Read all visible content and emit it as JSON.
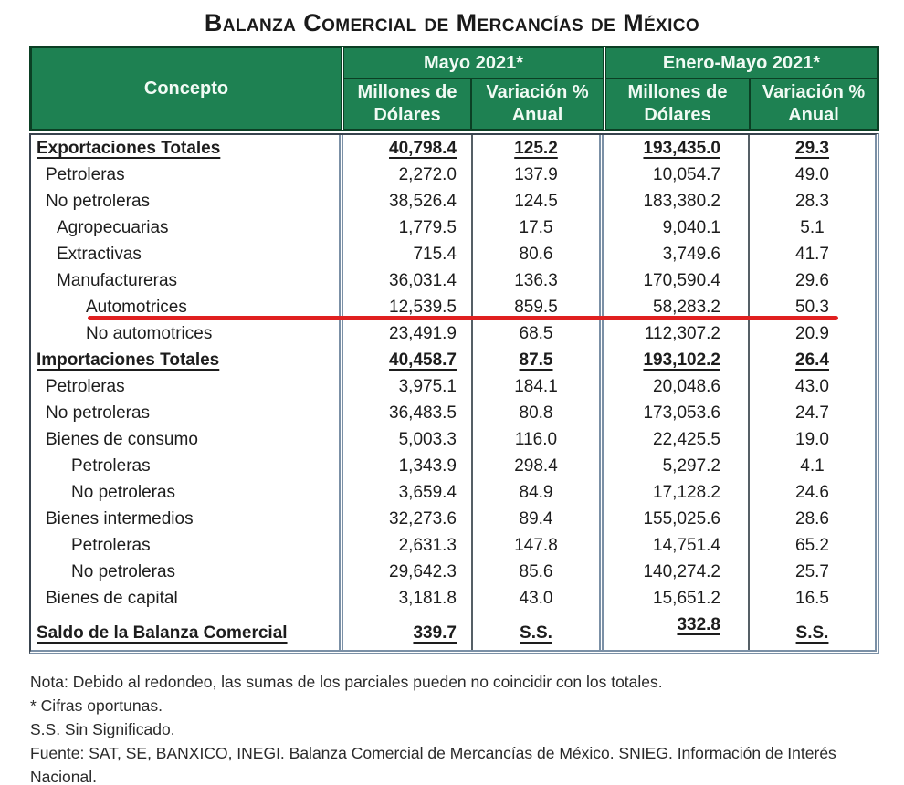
{
  "title": "Balanza Comercial de Mercancías de México",
  "table": {
    "concepto_header": "Concepto",
    "groups": [
      {
        "label": "Mayo 2021*",
        "col1": "Millones de\nDólares",
        "col2": "Variación %\nAnual"
      },
      {
        "label": "Enero-Mayo 2021*",
        "col1": "Millones de\nDólares",
        "col2": "Variación %\nAnual"
      }
    ],
    "rows": [
      {
        "concepto": "Exportaciones Totales",
        "indent": 0,
        "bold": true,
        "underline": true,
        "values": [
          "40,798.4",
          "125.2",
          "193,435.0",
          "29.3"
        ]
      },
      {
        "concepto": "Petroleras",
        "indent": 1,
        "values": [
          "2,272.0",
          "137.9",
          "10,054.7",
          "49.0"
        ]
      },
      {
        "concepto": "No petroleras",
        "indent": 1,
        "values": [
          "38,526.4",
          "124.5",
          "183,380.2",
          "28.3"
        ]
      },
      {
        "concepto": "Agropecuarias",
        "indent": 2,
        "values": [
          "1,779.5",
          "17.5",
          "9,040.1",
          "5.1"
        ]
      },
      {
        "concepto": "Extractivas",
        "indent": 2,
        "values": [
          "715.4",
          "80.6",
          "3,749.6",
          "41.7"
        ]
      },
      {
        "concepto": "Manufactureras",
        "indent": 2,
        "values": [
          "36,031.4",
          "136.3",
          "170,590.4",
          "29.6"
        ]
      },
      {
        "concepto": "Automotrices",
        "indent": 4,
        "values": [
          "12,539.5",
          "859.5",
          "58,283.2",
          "50.3"
        ]
      },
      {
        "concepto": "No automotrices",
        "indent": 4,
        "values": [
          "23,491.9",
          "68.5",
          "112,307.2",
          "20.9"
        ]
      },
      {
        "concepto": "Importaciones Totales",
        "indent": 0,
        "bold": true,
        "underline": true,
        "values": [
          "40,458.7",
          "87.5",
          "193,102.2",
          "26.4"
        ]
      },
      {
        "concepto": "Petroleras",
        "indent": 1,
        "values": [
          "3,975.1",
          "184.1",
          "20,048.6",
          "43.0"
        ]
      },
      {
        "concepto": "No petroleras",
        "indent": 1,
        "values": [
          "36,483.5",
          "80.8",
          "173,053.6",
          "24.7"
        ]
      },
      {
        "concepto": "Bienes de consumo",
        "indent": 1,
        "values": [
          "5,003.3",
          "116.0",
          "22,425.5",
          "19.0"
        ]
      },
      {
        "concepto": "Petroleras",
        "indent": 3,
        "values": [
          "1,343.9",
          "298.4",
          "5,297.2",
          "4.1"
        ]
      },
      {
        "concepto": "No petroleras",
        "indent": 3,
        "values": [
          "3,659.4",
          "84.9",
          "17,128.2",
          "24.6"
        ]
      },
      {
        "concepto": "Bienes intermedios",
        "indent": 1,
        "values": [
          "32,273.6",
          "89.4",
          "155,025.6",
          "28.6"
        ]
      },
      {
        "concepto": "Petroleras",
        "indent": 3,
        "values": [
          "2,631.3",
          "147.8",
          "14,751.4",
          "65.2"
        ]
      },
      {
        "concepto": "No petroleras",
        "indent": 3,
        "values": [
          "29,642.3",
          "85.6",
          "140,274.2",
          "25.7"
        ]
      },
      {
        "concepto": "Bienes de capital",
        "indent": 1,
        "values": [
          "3,181.8",
          "43.0",
          "15,651.2",
          "16.5"
        ]
      },
      {
        "concepto": "Saldo de la Balanza Comercial",
        "indent": 0,
        "bold": true,
        "underline": true,
        "tall": true,
        "raise_col": 3,
        "values": [
          "339.7",
          "S.S.",
          "332.8",
          "S.S."
        ]
      }
    ]
  },
  "annotation": {
    "type": "red-underline",
    "row_label": "Automotrices",
    "row_index": 6,
    "color": "#E02020"
  },
  "footnotes": [
    "Nota: Debido al redondeo, las sumas de los parciales pueden no coincidir con los totales.",
    "* Cifras oportunas.",
    "S.S. Sin Significado.",
    "Fuente: SAT, SE, BANXICO, INEGI. Balanza Comercial de Mercancías de México. SNIEG. Información de Interés Nacional."
  ],
  "colors": {
    "header_green": "#1E8152",
    "header_border_green": "#0B3F24",
    "red_line": "#E02020"
  }
}
